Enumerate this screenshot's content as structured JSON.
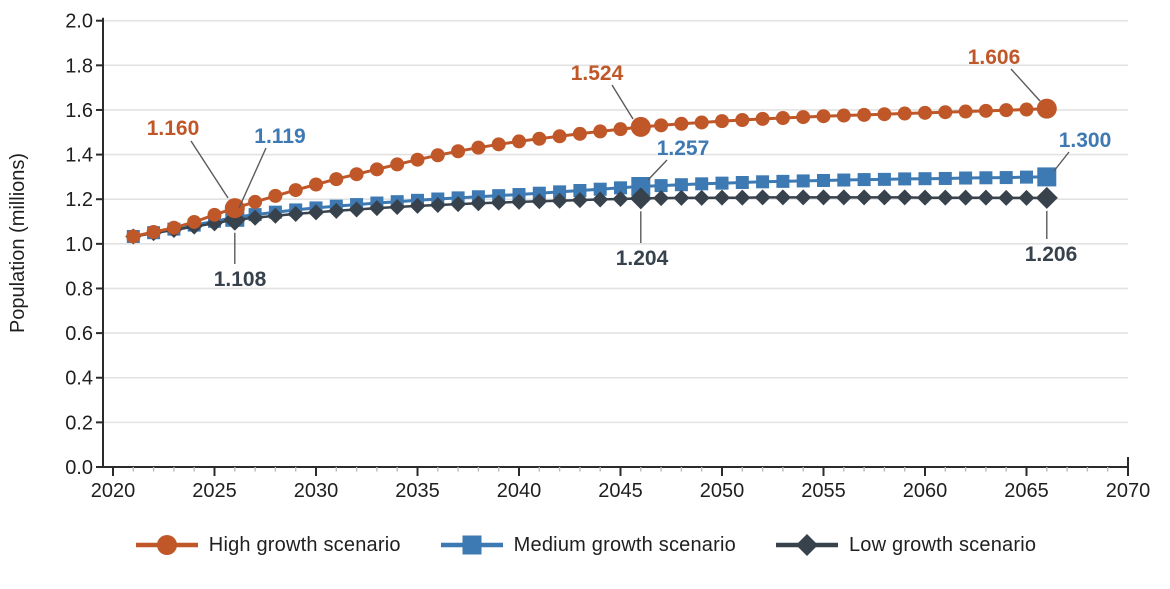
{
  "figure": {
    "background": "#ffffff",
    "gridline_color": "#e2e2e2",
    "axis_color": "#2b2b2b",
    "tick_label_color": "#1f1f1f",
    "leader_line_color": "#5a5a5a"
  },
  "chart_data": {
    "type": "line",
    "title": "",
    "xlabel": "",
    "ylabel": "Population (millions)",
    "xlim": [
      2020,
      2070
    ],
    "ylim": [
      0.0,
      2.0
    ],
    "grid": "horizontal",
    "legend_position": "bottom",
    "x_major_ticks": [
      2020,
      2025,
      2030,
      2035,
      2040,
      2045,
      2050,
      2055,
      2060,
      2065,
      2070
    ],
    "x_minor_tick_interval": 1,
    "y_tick_labels": [
      "0.0",
      "0.2",
      "0.4",
      "0.6",
      "0.8",
      "1.0",
      "1.2",
      "1.4",
      "1.6",
      "1.8",
      "2.0"
    ],
    "x": [
      2021,
      2022,
      2023,
      2024,
      2025,
      2026,
      2027,
      2028,
      2029,
      2030,
      2031,
      2032,
      2033,
      2034,
      2035,
      2036,
      2037,
      2038,
      2039,
      2040,
      2041,
      2042,
      2043,
      2044,
      2045,
      2046,
      2047,
      2048,
      2049,
      2050,
      2051,
      2052,
      2053,
      2054,
      2055,
      2056,
      2057,
      2058,
      2059,
      2060,
      2061,
      2062,
      2063,
      2064,
      2065,
      2066
    ],
    "series": [
      {
        "key": "high",
        "name": "High growth scenario",
        "color": "#BF5729",
        "marker": "circle",
        "line_width": 3,
        "values": [
          1.033,
          1.053,
          1.072,
          1.098,
          1.13,
          1.16,
          1.188,
          1.215,
          1.241,
          1.266,
          1.29,
          1.312,
          1.334,
          1.356,
          1.377,
          1.397,
          1.415,
          1.431,
          1.446,
          1.459,
          1.471,
          1.482,
          1.493,
          1.504,
          1.514,
          1.524,
          1.531,
          1.538,
          1.544,
          1.55,
          1.555,
          1.56,
          1.564,
          1.568,
          1.572,
          1.575,
          1.578,
          1.581,
          1.584,
          1.587,
          1.59,
          1.593,
          1.596,
          1.599,
          1.602,
          1.606
        ]
      },
      {
        "key": "medium",
        "name": "Medium growth scenario",
        "color": "#3D79B2",
        "marker": "square",
        "line_width": 3,
        "values": [
          1.033,
          1.05,
          1.066,
          1.084,
          1.101,
          1.119,
          1.131,
          1.142,
          1.152,
          1.161,
          1.169,
          1.176,
          1.183,
          1.189,
          1.195,
          1.201,
          1.206,
          1.211,
          1.216,
          1.221,
          1.227,
          1.233,
          1.239,
          1.245,
          1.251,
          1.257,
          1.261,
          1.265,
          1.269,
          1.272,
          1.275,
          1.278,
          1.28,
          1.282,
          1.284,
          1.286,
          1.288,
          1.289,
          1.291,
          1.292,
          1.293,
          1.295,
          1.296,
          1.297,
          1.299,
          1.3
        ]
      },
      {
        "key": "low",
        "name": "Low growth scenario",
        "color": "#37424C",
        "marker": "diamond",
        "line_width": 2.5,
        "values": [
          1.033,
          1.048,
          1.062,
          1.077,
          1.092,
          1.108,
          1.117,
          1.126,
          1.134,
          1.141,
          1.148,
          1.154,
          1.16,
          1.165,
          1.17,
          1.174,
          1.178,
          1.182,
          1.185,
          1.188,
          1.191,
          1.193,
          1.196,
          1.199,
          1.201,
          1.204,
          1.205,
          1.206,
          1.206,
          1.207,
          1.207,
          1.208,
          1.208,
          1.208,
          1.208,
          1.208,
          1.208,
          1.208,
          1.208,
          1.207,
          1.207,
          1.207,
          1.207,
          1.206,
          1.206,
          1.206
        ]
      }
    ],
    "annotations": [
      {
        "series": "high",
        "year": 2026,
        "label": "1.160"
      },
      {
        "series": "medium",
        "year": 2026,
        "label": "1.119"
      },
      {
        "series": "low",
        "year": 2026,
        "label": "1.108"
      },
      {
        "series": "high",
        "year": 2046,
        "label": "1.524"
      },
      {
        "series": "medium",
        "year": 2046,
        "label": "1.257"
      },
      {
        "series": "low",
        "year": 2046,
        "label": "1.204"
      },
      {
        "series": "high",
        "year": 2066,
        "label": "1.606"
      },
      {
        "series": "medium",
        "year": 2066,
        "label": "1.300"
      },
      {
        "series": "low",
        "year": 2066,
        "label": "1.206"
      }
    ]
  }
}
